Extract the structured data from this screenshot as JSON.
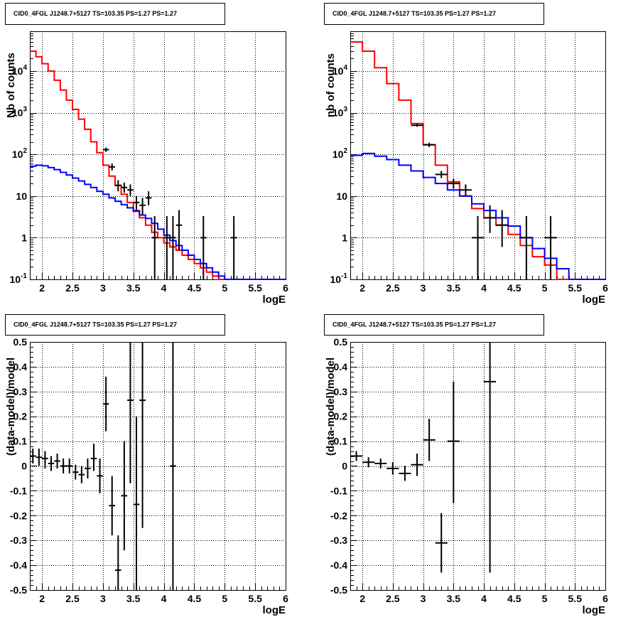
{
  "chart_data": [
    {
      "type": "line",
      "id": "top-left",
      "title": "CID0_4FGL J1248.7+5127 TS=103.35 PS=1.27 PS=1.27",
      "xlabel": "logE",
      "ylabel": "Nb of counts",
      "xlim": [
        1.8,
        6.0
      ],
      "ylim": [
        0.1,
        90000
      ],
      "yscale": "log",
      "grid": true,
      "x_ticks": [
        "2",
        "2.5",
        "3",
        "3.5",
        "4",
        "4.5",
        "5",
        "5.5",
        "6"
      ],
      "y_ticks": [
        "10^{-1}",
        "1",
        "10",
        "10^{2}",
        "10^{3}",
        "10^{4}"
      ],
      "series": [
        {
          "color": "#ff0000",
          "kind": "step",
          "edges": [
            1.8,
            1.9,
            2.0,
            2.1,
            2.2,
            2.3,
            2.4,
            2.5,
            2.6,
            2.7,
            2.8,
            2.9,
            3.0,
            3.1,
            3.2,
            3.3,
            3.4,
            3.5,
            3.6,
            3.7,
            3.8,
            3.9,
            4.0,
            4.1,
            4.2,
            4.3,
            4.4,
            4.5,
            4.6,
            4.7,
            4.8,
            4.9,
            5.0,
            5.1,
            5.2,
            5.3,
            5.4,
            5.5,
            5.6,
            5.7,
            5.8,
            5.9,
            6.0
          ],
          "values": [
            30000,
            22000,
            15000,
            10000,
            6000,
            3500,
            2000,
            1200,
            700,
            400,
            200,
            110,
            55,
            30,
            18,
            11,
            7,
            4.5,
            3.0,
            2.0,
            1.35,
            1.0,
            0.75,
            0.6,
            0.5,
            0.38,
            0.3,
            0.24,
            0.19,
            0.15,
            0.12,
            0.1,
            0.1,
            0.1,
            0.1,
            0.1,
            0.1,
            0.1,
            0.1,
            0.1,
            0.1,
            0.1
          ]
        },
        {
          "color": "#0000ff",
          "kind": "step",
          "edges": [
            1.8,
            1.9,
            2.0,
            2.1,
            2.2,
            2.3,
            2.4,
            2.5,
            2.6,
            2.7,
            2.8,
            2.9,
            3.0,
            3.1,
            3.2,
            3.3,
            3.4,
            3.5,
            3.6,
            3.7,
            3.8,
            3.9,
            4.0,
            4.1,
            4.2,
            4.3,
            4.4,
            4.5,
            4.6,
            4.7,
            4.8,
            4.9,
            5.0,
            5.1,
            5.2,
            5.3,
            5.4,
            5.5,
            5.6,
            5.7,
            5.8,
            5.9,
            6.0
          ],
          "values": [
            52,
            55,
            53,
            48,
            43,
            37,
            32,
            27,
            23,
            19,
            16,
            13,
            11,
            9,
            7.5,
            6.2,
            5.2,
            4.3,
            3.5,
            2.9,
            2.2,
            1.6,
            1.15,
            0.85,
            0.65,
            0.5,
            0.38,
            0.3,
            0.24,
            0.19,
            0.15,
            0.12,
            0.1,
            0.1,
            0.1,
            0.1,
            0.1,
            0.1,
            0.1,
            0.1,
            0.1,
            0.1
          ]
        },
        {
          "color": "#000000",
          "kind": "errorbar",
          "points": [
            {
              "x": 3.05,
              "y": 130,
              "xerr": 0.05,
              "ylo": 115,
              "yhi": 145
            },
            {
              "x": 3.15,
              "y": 50,
              "xerr": 0.05,
              "ylo": 41,
              "yhi": 60
            },
            {
              "x": 3.25,
              "y": 18,
              "xerr": 0.05,
              "ylo": 13,
              "yhi": 24
            },
            {
              "x": 3.35,
              "y": 16,
              "xerr": 0.05,
              "ylo": 12,
              "yhi": 21
            },
            {
              "x": 3.45,
              "y": 14,
              "xerr": 0.05,
              "ylo": 10,
              "yhi": 19
            },
            {
              "x": 3.55,
              "y": 7,
              "xerr": 0.05,
              "ylo": 4.5,
              "yhi": 10
            },
            {
              "x": 3.65,
              "y": 6,
              "xerr": 0.05,
              "ylo": 3.5,
              "yhi": 9
            },
            {
              "x": 3.75,
              "y": 9,
              "xerr": 0.05,
              "ylo": 6,
              "yhi": 13
            },
            {
              "x": 3.85,
              "y": 1,
              "xerr": 0.05,
              "ylo": 0.1,
              "yhi": 3.3
            },
            {
              "x": 4.05,
              "y": 1,
              "xerr": 0.05,
              "ylo": 0.1,
              "yhi": 3.3
            },
            {
              "x": 4.15,
              "y": 1,
              "xerr": 0.05,
              "ylo": 0.1,
              "yhi": 3.3
            },
            {
              "x": 4.25,
              "y": 2,
              "xerr": 0.05,
              "ylo": 0.5,
              "yhi": 4.6
            },
            {
              "x": 4.65,
              "y": 1,
              "xerr": 0.05,
              "ylo": 0.1,
              "yhi": 3.3
            },
            {
              "x": 5.15,
              "y": 1,
              "xerr": 0.05,
              "ylo": 0.1,
              "yhi": 3.3
            }
          ]
        }
      ]
    },
    {
      "type": "line",
      "id": "top-right",
      "title": "CID0_4FGL J1248.7+5127 TS=103.35 PS=1.27 PS=1.27",
      "xlabel": "logE",
      "ylabel": "nb of counts",
      "xlim": [
        1.8,
        6.0
      ],
      "ylim": [
        0.1,
        90000
      ],
      "yscale": "log",
      "grid": true,
      "x_ticks": [
        "2",
        "2.5",
        "3",
        "3.5",
        "4",
        "4.5",
        "5",
        "5.5",
        "6"
      ],
      "y_ticks": [
        "10^{-1}",
        "1",
        "10",
        "10^{2}",
        "10^{3}",
        "10^{4}"
      ],
      "series": [
        {
          "color": "#ff0000",
          "kind": "step",
          "edges": [
            1.8,
            2.0,
            2.2,
            2.4,
            2.6,
            2.8,
            3.0,
            3.2,
            3.4,
            3.6,
            3.8,
            4.0,
            4.2,
            4.4,
            4.6,
            4.8,
            5.0,
            5.2,
            5.4,
            5.6,
            5.8,
            6.0
          ],
          "values": [
            50000,
            30000,
            12000,
            5000,
            2000,
            550,
            170,
            55,
            22,
            10,
            5,
            3,
            2,
            1.2,
            0.65,
            0.35,
            0.22,
            0.1,
            0.1,
            0.1,
            0.1
          ]
        },
        {
          "color": "#0000ff",
          "kind": "step",
          "edges": [
            1.8,
            2.0,
            2.2,
            2.4,
            2.6,
            2.8,
            3.0,
            3.2,
            3.4,
            3.6,
            3.8,
            4.0,
            4.2,
            4.4,
            4.6,
            4.8,
            5.0,
            5.2,
            5.4,
            5.6,
            5.8,
            6.0
          ],
          "values": [
            95,
            105,
            90,
            75,
            55,
            40,
            28,
            20,
            14,
            10,
            6.5,
            4.5,
            3,
            1.9,
            1.0,
            0.55,
            0.32,
            0.18,
            0.1,
            0.1,
            0.1
          ]
        },
        {
          "color": "#000000",
          "kind": "errorbar",
          "points": [
            {
              "x": 2.9,
              "y": 500,
              "xerr": 0.1,
              "ylo": 460,
              "yhi": 545
            },
            {
              "x": 3.1,
              "y": 170,
              "xerr": 0.1,
              "ylo": 150,
              "yhi": 190
            },
            {
              "x": 3.3,
              "y": 33,
              "xerr": 0.1,
              "ylo": 27,
              "yhi": 40
            },
            {
              "x": 3.5,
              "y": 20,
              "xerr": 0.1,
              "ylo": 15,
              "yhi": 26
            },
            {
              "x": 3.7,
              "y": 14,
              "xerr": 0.1,
              "ylo": 10,
              "yhi": 19
            },
            {
              "x": 3.9,
              "y": 1,
              "xerr": 0.1,
              "ylo": 0.1,
              "yhi": 3.3
            },
            {
              "x": 4.1,
              "y": 3,
              "xerr": 0.1,
              "ylo": 1.3,
              "yhi": 6
            },
            {
              "x": 4.3,
              "y": 2,
              "xerr": 0.1,
              "ylo": 0.6,
              "yhi": 4.6
            },
            {
              "x": 4.7,
              "y": 1,
              "xerr": 0.1,
              "ylo": 0.1,
              "yhi": 3.3
            },
            {
              "x": 5.1,
              "y": 1,
              "xerr": 0.1,
              "ylo": 0.1,
              "yhi": 3.3
            }
          ]
        }
      ]
    },
    {
      "type": "scatter",
      "id": "bottom-left",
      "title": "CID0_4FGL J1248.7+5127 TS=103.35 PS=1.27 PS=1.27",
      "xlabel": "logE",
      "ylabel": "(data-model)/model",
      "xlim": [
        1.8,
        6.0
      ],
      "ylim": [
        -0.5,
        0.5
      ],
      "grid": true,
      "x_ticks": [
        "2",
        "2.5",
        "3",
        "3.5",
        "4",
        "4.5",
        "5",
        "5.5",
        "6"
      ],
      "y_ticks": [
        "-0.5",
        "-0.4",
        "-0.3",
        "-0.2",
        "-0.1",
        "0",
        "0.1",
        "0.2",
        "0.3",
        "0.4",
        "0.5"
      ],
      "series": [
        {
          "color": "#000000",
          "kind": "errorbar",
          "points": [
            {
              "x": 1.85,
              "y": 0.04,
              "xerr": 0.05,
              "ylo": 0.01,
              "yhi": 0.07
            },
            {
              "x": 1.95,
              "y": 0.035,
              "xerr": 0.05,
              "ylo": 0.0,
              "yhi": 0.07
            },
            {
              "x": 2.05,
              "y": 0.03,
              "xerr": 0.05,
              "ylo": -0.01,
              "yhi": 0.06
            },
            {
              "x": 2.15,
              "y": 0.01,
              "xerr": 0.05,
              "ylo": -0.02,
              "yhi": 0.04
            },
            {
              "x": 2.25,
              "y": 0.02,
              "xerr": 0.05,
              "ylo": -0.01,
              "yhi": 0.05
            },
            {
              "x": 2.35,
              "y": 0.0,
              "xerr": 0.05,
              "ylo": -0.03,
              "yhi": 0.03
            },
            {
              "x": 2.45,
              "y": 0.0,
              "xerr": 0.05,
              "ylo": -0.03,
              "yhi": 0.03
            },
            {
              "x": 2.55,
              "y": -0.025,
              "xerr": 0.05,
              "ylo": -0.055,
              "yhi": 0.005
            },
            {
              "x": 2.65,
              "y": -0.035,
              "xerr": 0.05,
              "ylo": -0.07,
              "yhi": 0.0
            },
            {
              "x": 2.75,
              "y": -0.01,
              "xerr": 0.05,
              "ylo": -0.05,
              "yhi": 0.03
            },
            {
              "x": 2.85,
              "y": 0.03,
              "xerr": 0.05,
              "ylo": -0.02,
              "yhi": 0.09
            },
            {
              "x": 2.95,
              "y": -0.04,
              "xerr": 0.05,
              "ylo": -0.11,
              "yhi": 0.03
            },
            {
              "x": 3.05,
              "y": 0.25,
              "xerr": 0.05,
              "ylo": 0.14,
              "yhi": 0.36
            },
            {
              "x": 3.15,
              "y": -0.16,
              "xerr": 0.05,
              "ylo": -0.28,
              "yhi": -0.04
            },
            {
              "x": 3.25,
              "y": -0.42,
              "xerr": 0.05,
              "ylo": -0.5,
              "yhi": -0.28
            },
            {
              "x": 3.35,
              "y": -0.12,
              "xerr": 0.05,
              "ylo": -0.34,
              "yhi": 0.1
            },
            {
              "x": 3.45,
              "y": 0.265,
              "xerr": 0.05,
              "ylo": -0.07,
              "yhi": 0.5
            },
            {
              "x": 3.55,
              "y": -0.155,
              "xerr": 0.05,
              "ylo": -0.5,
              "yhi": 0.2
            },
            {
              "x": 3.65,
              "y": 0.265,
              "xerr": 0.05,
              "ylo": -0.25,
              "yhi": 0.5
            },
            {
              "x": 4.15,
              "y": 0.0,
              "xerr": 0.05,
              "ylo": -0.5,
              "yhi": 0.5
            }
          ]
        }
      ]
    },
    {
      "type": "scatter",
      "id": "bottom-right",
      "title": "CID0_4FGL J1248.7+5127 TS=103.35 PS=1.27 PS=1.27",
      "xlabel": "logE",
      "ylabel": "(data-model)/model",
      "xlim": [
        1.8,
        6.0
      ],
      "ylim": [
        -0.5,
        0.5
      ],
      "grid": true,
      "x_ticks": [
        "2",
        "2.5",
        "3",
        "3.5",
        "4",
        "4.5",
        "5",
        "5.5",
        "6"
      ],
      "y_ticks": [
        "-0.5",
        "-0.4",
        "-0.3",
        "-0.2",
        "-0.1",
        "0",
        "0.1",
        "0.2",
        "0.3",
        "0.4",
        "0.5"
      ],
      "series": [
        {
          "color": "#000000",
          "kind": "errorbar",
          "points": [
            {
              "x": 1.9,
              "y": 0.04,
              "xerr": 0.1,
              "ylo": 0.02,
              "yhi": 0.06
            },
            {
              "x": 2.1,
              "y": 0.015,
              "xerr": 0.1,
              "ylo": -0.005,
              "yhi": 0.035
            },
            {
              "x": 2.3,
              "y": 0.01,
              "xerr": 0.1,
              "ylo": -0.01,
              "yhi": 0.03
            },
            {
              "x": 2.5,
              "y": -0.01,
              "xerr": 0.1,
              "ylo": -0.035,
              "yhi": 0.015
            },
            {
              "x": 2.7,
              "y": -0.03,
              "xerr": 0.1,
              "ylo": -0.06,
              "yhi": 0.0
            },
            {
              "x": 2.9,
              "y": 0.005,
              "xerr": 0.1,
              "ylo": -0.04,
              "yhi": 0.05
            },
            {
              "x": 3.1,
              "y": 0.105,
              "xerr": 0.1,
              "ylo": 0.02,
              "yhi": 0.19
            },
            {
              "x": 3.3,
              "y": -0.31,
              "xerr": 0.1,
              "ylo": -0.43,
              "yhi": -0.19
            },
            {
              "x": 3.5,
              "y": 0.1,
              "xerr": 0.1,
              "ylo": -0.15,
              "yhi": 0.34
            },
            {
              "x": 4.1,
              "y": 0.34,
              "xerr": 0.1,
              "ylo": -0.43,
              "yhi": 0.5
            }
          ]
        }
      ]
    }
  ]
}
